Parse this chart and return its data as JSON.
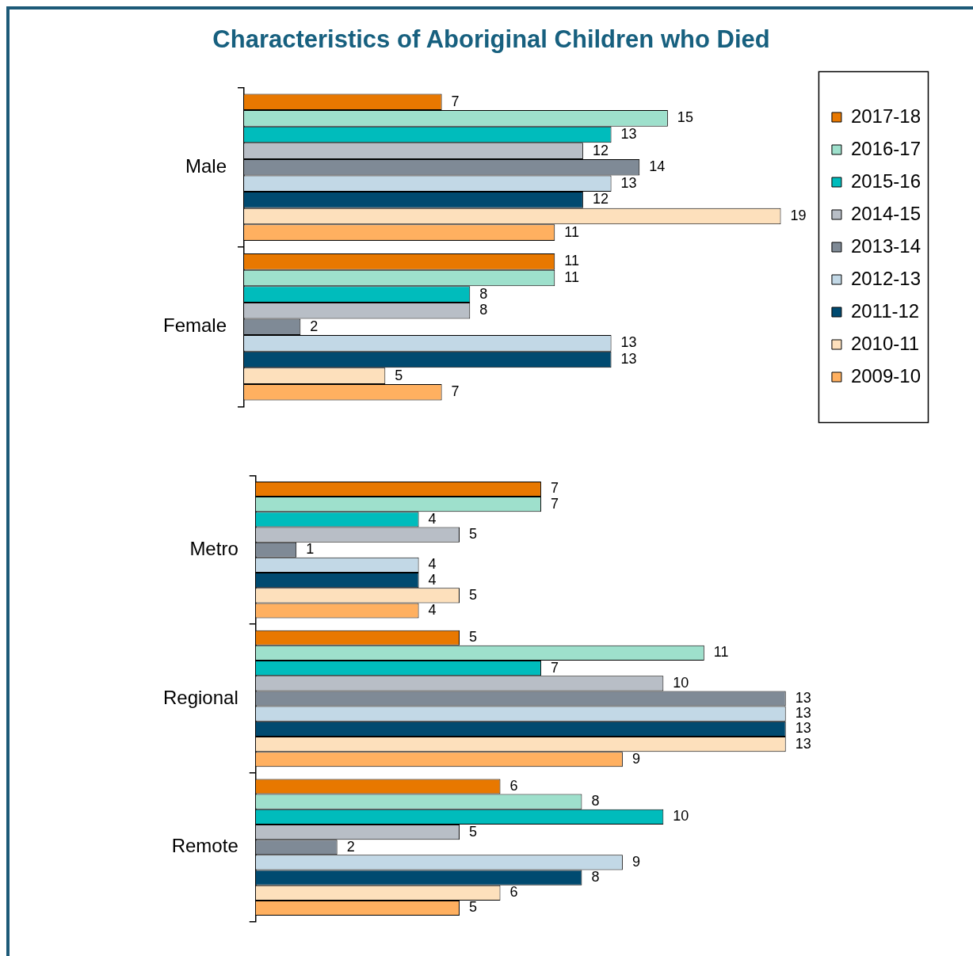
{
  "chart_data": [
    {
      "type": "bar",
      "orientation": "horizontal",
      "title": "Characteristics of Aboriginal Children who Died",
      "categories": [
        "Male",
        "Female"
      ],
      "data_labels": true,
      "legend": "right",
      "series": [
        {
          "name": "2017-18",
          "color": "#e87800",
          "values": [
            7,
            11
          ]
        },
        {
          "name": "2016-17",
          "color": "#9ee0cc",
          "values": [
            15,
            11
          ]
        },
        {
          "name": "2015-16",
          "color": "#00bcbc",
          "values": [
            13,
            8
          ]
        },
        {
          "name": "2014-15",
          "color": "#b8bec6",
          "values": [
            12,
            8
          ]
        },
        {
          "name": "2013-14",
          "color": "#7f8a96",
          "values": [
            14,
            2
          ]
        },
        {
          "name": "2012-13",
          "color": "#c2d8e6",
          "values": [
            13,
            13
          ]
        },
        {
          "name": "2011-12",
          "color": "#004a70",
          "values": [
            12,
            13
          ]
        },
        {
          "name": "2010-11",
          "color": "#fde0bc",
          "values": [
            19,
            5
          ]
        },
        {
          "name": "2009-10",
          "color": "#ffb060",
          "values": [
            11,
            7
          ]
        }
      ]
    },
    {
      "type": "bar",
      "orientation": "horizontal",
      "categories": [
        "Metro",
        "Regional",
        "Remote"
      ],
      "data_labels": true,
      "series": [
        {
          "name": "2017-18",
          "color": "#e87800",
          "values": [
            7,
            5,
            6
          ]
        },
        {
          "name": "2016-17",
          "color": "#9ee0cc",
          "values": [
            7,
            11,
            8
          ]
        },
        {
          "name": "2015-16",
          "color": "#00bcbc",
          "values": [
            4,
            7,
            10
          ]
        },
        {
          "name": "2014-15",
          "color": "#b8bec6",
          "values": [
            5,
            10,
            5
          ]
        },
        {
          "name": "2013-14",
          "color": "#7f8a96",
          "values": [
            1,
            13,
            2
          ]
        },
        {
          "name": "2012-13",
          "color": "#c2d8e6",
          "values": [
            4,
            13,
            9
          ]
        },
        {
          "name": "2011-12",
          "color": "#004a70",
          "values": [
            4,
            13,
            8
          ]
        },
        {
          "name": "2010-11",
          "color": "#fde0bc",
          "values": [
            5,
            13,
            6
          ]
        },
        {
          "name": "2009-10",
          "color": "#ffb060",
          "values": [
            4,
            9,
            5
          ]
        }
      ]
    }
  ]
}
